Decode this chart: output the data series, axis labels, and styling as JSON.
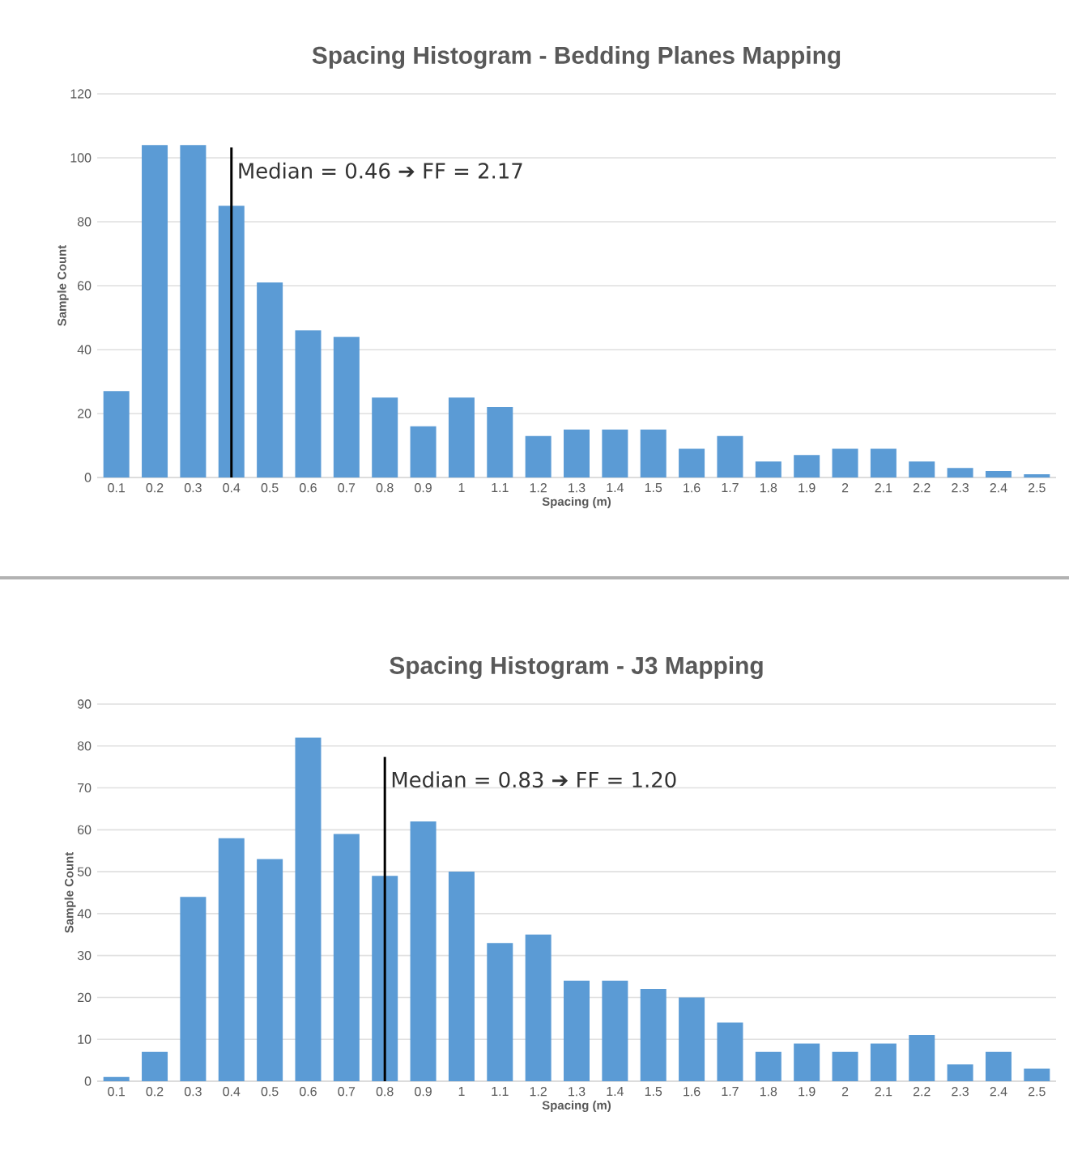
{
  "chart_data": [
    {
      "type": "bar",
      "title": "Spacing Histogram - Bedding Planes Mapping",
      "xlabel": "Spacing (m)",
      "ylabel": "Sample Count",
      "categories": [
        "0.1",
        "0.2",
        "0.3",
        "0.4",
        "0.5",
        "0.6",
        "0.7",
        "0.8",
        "0.9",
        "1",
        "1.1",
        "1.2",
        "1.3",
        "1.4",
        "1.5",
        "1.6",
        "1.7",
        "1.8",
        "1.9",
        "2",
        "2.1",
        "2.2",
        "2.3",
        "2.4",
        "2.5"
      ],
      "values": [
        27,
        104,
        104,
        85,
        61,
        46,
        44,
        25,
        16,
        25,
        22,
        13,
        15,
        15,
        15,
        9,
        13,
        5,
        7,
        9,
        9,
        5,
        3,
        2,
        1
      ],
      "color": "#5b9bd5",
      "ylim": [
        0,
        120
      ],
      "yticks": [
        0,
        20,
        40,
        60,
        80,
        100,
        120
      ],
      "grid": "y",
      "ref_lines": [
        {
          "axis": "x",
          "value": "0.4",
          "label": "Median = 0.46 ➔ FF = 2.17",
          "color": "#000000"
        }
      ]
    },
    {
      "type": "bar",
      "title": "Spacing Histogram - J3 Mapping",
      "xlabel": "Spacing (m)",
      "ylabel": "Sample Count",
      "categories": [
        "0.1",
        "0.2",
        "0.3",
        "0.4",
        "0.5",
        "0.6",
        "0.7",
        "0.8",
        "0.9",
        "1",
        "1.1",
        "1.2",
        "1.3",
        "1.4",
        "1.5",
        "1.6",
        "1.7",
        "1.8",
        "1.9",
        "2",
        "2.1",
        "2.2",
        "2.3",
        "2.4",
        "2.5"
      ],
      "values": [
        1,
        7,
        44,
        58,
        53,
        82,
        59,
        49,
        62,
        50,
        33,
        35,
        24,
        24,
        22,
        20,
        14,
        7,
        9,
        7,
        9,
        11,
        4,
        7,
        3
      ],
      "color": "#5b9bd5",
      "ylim": [
        0,
        90
      ],
      "yticks": [
        0,
        10,
        20,
        30,
        40,
        50,
        60,
        70,
        80,
        90
      ],
      "grid": "y",
      "ref_lines": [
        {
          "axis": "x",
          "value": "0.8",
          "label": "Median = 0.83 ➔ FF = 1.20",
          "color": "#000000"
        }
      ]
    }
  ]
}
